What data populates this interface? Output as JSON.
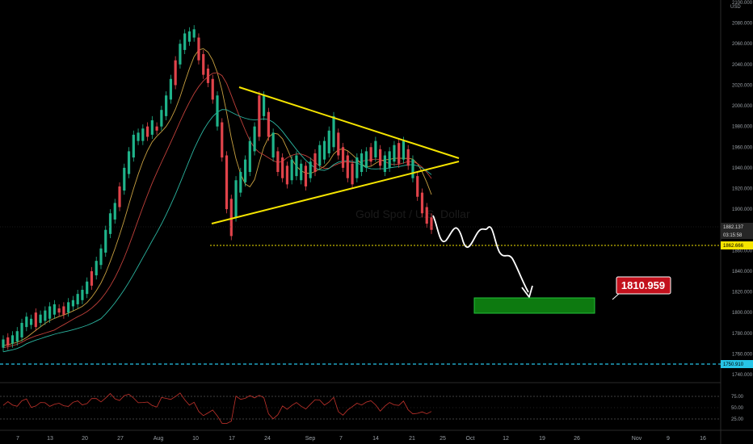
{
  "chart_data": {
    "type": "candlestick",
    "currency": "USD",
    "watermark": "Gold Spot / U.S. Dollar",
    "target_label": "1810.959",
    "price_axis": {
      "range": [
        1735,
        2107
      ],
      "ticks": [
        2100,
        2080,
        2060,
        2040,
        2020,
        2000,
        1980,
        1960,
        1940,
        1920,
        1900,
        1880,
        1860,
        1840,
        1820,
        1800,
        1780,
        1760,
        1740
      ]
    },
    "last_price": "1882.137",
    "countdown": "03:15:58",
    "support_level": "1862.666",
    "lower_level": "1750.910",
    "time_axis": {
      "labels": [
        "7",
        "13",
        "20",
        "27",
        "Aug",
        "10",
        "17",
        "24",
        "Sep",
        "7",
        "14",
        "21",
        "25",
        "Oct",
        "12",
        "19",
        "26",
        "Nov",
        "9",
        "16"
      ]
    },
    "candles": [
      [
        1766,
        1774
      ],
      [
        1768,
        1776
      ],
      [
        1770,
        1778
      ],
      [
        1772,
        1782
      ],
      [
        1776,
        1790
      ],
      [
        1786,
        1796
      ],
      [
        1788,
        1794
      ],
      [
        1786,
        1800
      ],
      [
        1790,
        1798
      ],
      [
        1792,
        1802
      ],
      [
        1794,
        1806
      ],
      [
        1798,
        1808
      ],
      [
        1800,
        1804
      ],
      [
        1798,
        1806
      ],
      [
        1800,
        1810
      ],
      [
        1806,
        1812
      ],
      [
        1808,
        1818
      ],
      [
        1812,
        1822
      ],
      [
        1818,
        1830
      ],
      [
        1826,
        1840
      ],
      [
        1836,
        1850
      ],
      [
        1846,
        1862
      ],
      [
        1858,
        1880
      ],
      [
        1876,
        1896
      ],
      [
        1890,
        1906
      ],
      [
        1902,
        1922
      ],
      [
        1918,
        1940
      ],
      [
        1934,
        1956
      ],
      [
        1950,
        1972
      ],
      [
        1966,
        1974
      ],
      [
        1966,
        1978
      ],
      [
        1970,
        1980
      ],
      [
        1972,
        1986
      ],
      [
        1976,
        1980
      ],
      [
        1980,
        1996
      ],
      [
        1990,
        2010
      ],
      [
        2006,
        2026
      ],
      [
        2020,
        2044
      ],
      [
        2040,
        2060
      ],
      [
        2054,
        2070
      ],
      [
        2062,
        2072
      ],
      [
        2066,
        2074
      ],
      [
        2044,
        2066
      ],
      [
        2030,
        2050
      ],
      [
        2022,
        2036
      ],
      [
        2006,
        2026
      ],
      [
        1980,
        2010
      ],
      [
        1950,
        1984
      ],
      [
        1900,
        1952
      ],
      [
        1874,
        1910
      ],
      [
        1892,
        1928
      ],
      [
        1916,
        1936
      ],
      [
        1926,
        1948
      ],
      [
        1936,
        1966
      ],
      [
        1956,
        1980
      ],
      [
        1970,
        2010
      ],
      [
        1990,
        2010
      ],
      [
        1970,
        1994
      ],
      [
        1950,
        1974
      ],
      [
        1936,
        1956
      ],
      [
        1930,
        1950
      ],
      [
        1924,
        1942
      ],
      [
        1928,
        1948
      ],
      [
        1932,
        1952
      ],
      [
        1928,
        1944
      ],
      [
        1922,
        1942
      ],
      [
        1930,
        1946
      ],
      [
        1936,
        1954
      ],
      [
        1942,
        1962
      ],
      [
        1948,
        1966
      ],
      [
        1954,
        1976
      ],
      [
        1960,
        1990
      ],
      [
        1952,
        1974
      ],
      [
        1940,
        1960
      ],
      [
        1930,
        1952
      ],
      [
        1924,
        1944
      ],
      [
        1930,
        1950
      ],
      [
        1936,
        1954
      ],
      [
        1940,
        1956
      ],
      [
        1946,
        1960
      ],
      [
        1950,
        1966
      ],
      [
        1942,
        1958
      ],
      [
        1936,
        1952
      ],
      [
        1940,
        1956
      ],
      [
        1946,
        1962
      ],
      [
        1944,
        1964
      ],
      [
        1948,
        1966
      ],
      [
        1942,
        1958
      ],
      [
        1930,
        1948
      ],
      [
        1912,
        1932
      ],
      [
        1896,
        1916
      ],
      [
        1886,
        1902
      ],
      [
        1880,
        1892
      ]
    ],
    "rsi": {
      "upper": "75.00",
      "mid": "50.00",
      "lower": "25.00"
    }
  }
}
